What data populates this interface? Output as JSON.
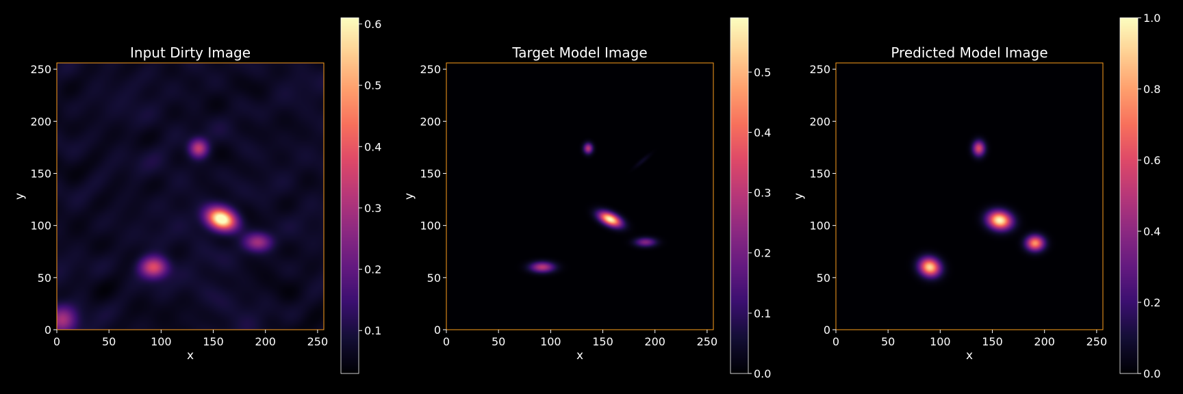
{
  "figure": {
    "background": "#000000",
    "text_color": "#ffffff",
    "frame_color": "#ff9f1c"
  },
  "colormap": "magma",
  "chart_data": [
    {
      "type": "heatmap",
      "title": "Input Dirty Image",
      "xlabel": "x",
      "ylabel": "y",
      "xlim": [
        0,
        256
      ],
      "ylim": [
        0,
        256
      ],
      "xticks": [
        0,
        50,
        100,
        150,
        200,
        250
      ],
      "yticks": [
        0,
        50,
        100,
        150,
        200,
        250
      ],
      "colorbar": {
        "range": [
          0.03,
          0.61
        ],
        "ticks": [
          0.1,
          0.2,
          0.3,
          0.4,
          0.5,
          0.6
        ],
        "tick_labels": [
          "0.1",
          "0.2",
          "0.3",
          "0.4",
          "0.5",
          "0.6"
        ]
      },
      "background_level": 0.07,
      "noise": true,
      "sources": [
        {
          "x": 158,
          "y": 106,
          "sx": 10,
          "sy": 7,
          "angle": -20,
          "peak": 0.6
        },
        {
          "x": 93,
          "y": 60,
          "sx": 9,
          "sy": 7,
          "angle": 0,
          "peak": 0.33
        },
        {
          "x": 136,
          "y": 174,
          "sx": 6,
          "sy": 6,
          "angle": 0,
          "peak": 0.27
        },
        {
          "x": 193,
          "y": 84,
          "sx": 9,
          "sy": 6,
          "angle": 0,
          "peak": 0.22
        },
        {
          "x": 5,
          "y": 10,
          "sx": 9,
          "sy": 9,
          "angle": 0,
          "peak": 0.2
        }
      ]
    },
    {
      "type": "heatmap",
      "title": "Target Model Image",
      "xlabel": "x",
      "ylabel": "y",
      "xlim": [
        0,
        256
      ],
      "ylim": [
        0,
        256
      ],
      "xticks": [
        0,
        50,
        100,
        150,
        200,
        250
      ],
      "yticks": [
        0,
        50,
        100,
        150,
        200,
        250
      ],
      "colorbar": {
        "range": [
          0.0,
          0.59
        ],
        "ticks": [
          0.0,
          0.1,
          0.2,
          0.3,
          0.4,
          0.5
        ],
        "tick_labels": [
          "0.0",
          "0.1",
          "0.2",
          "0.3",
          "0.4",
          "0.5"
        ]
      },
      "background_level": 0.0,
      "noise": false,
      "sources": [
        {
          "x": 157,
          "y": 106,
          "sx": 8,
          "sy": 4,
          "angle": -25,
          "peak": 0.59
        },
        {
          "x": 92,
          "y": 60,
          "sx": 8,
          "sy": 3.5,
          "angle": 0,
          "peak": 0.3
        },
        {
          "x": 136,
          "y": 174,
          "sx": 3,
          "sy": 3.5,
          "angle": 0,
          "peak": 0.3
        },
        {
          "x": 191,
          "y": 84,
          "sx": 7,
          "sy": 3,
          "angle": 0,
          "peak": 0.22
        },
        {
          "x": 188,
          "y": 162,
          "sx": 7,
          "sy": 1.5,
          "angle": 40,
          "peak": 0.04
        }
      ]
    },
    {
      "type": "heatmap",
      "title": "Predicted Model Image",
      "xlabel": "x",
      "ylabel": "y",
      "xlim": [
        0,
        256
      ],
      "ylim": [
        0,
        256
      ],
      "xticks": [
        0,
        50,
        100,
        150,
        200,
        250
      ],
      "yticks": [
        0,
        50,
        100,
        150,
        200,
        250
      ],
      "colorbar": {
        "range": [
          0.0,
          1.0
        ],
        "ticks": [
          0.0,
          0.2,
          0.4,
          0.6,
          0.8,
          1.0
        ],
        "tick_labels": [
          "0.0",
          "0.2",
          "0.4",
          "0.6",
          "0.8",
          "1.0"
        ]
      },
      "background_level": 0.0,
      "noise": false,
      "sources": [
        {
          "x": 157,
          "y": 105,
          "sx": 8,
          "sy": 6,
          "angle": -10,
          "peak": 1.0
        },
        {
          "x": 90,
          "y": 60,
          "sx": 7,
          "sy": 6,
          "angle": -20,
          "peak": 0.92
        },
        {
          "x": 137,
          "y": 174,
          "sx": 4,
          "sy": 5,
          "angle": 0,
          "peak": 0.6
        },
        {
          "x": 191,
          "y": 83,
          "sx": 6,
          "sy": 5,
          "angle": 0,
          "peak": 0.78
        }
      ]
    }
  ]
}
